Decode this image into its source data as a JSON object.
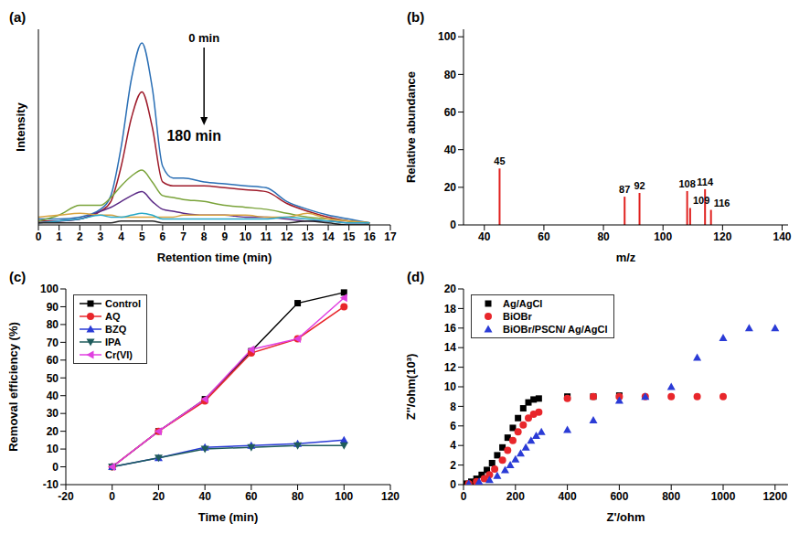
{
  "chart_data": [
    {
      "title": "(a)",
      "type": "line",
      "x_label": "Retention time (min)",
      "y_label": "Intensity",
      "tick_labels": "x",
      "annotations": [
        "0 min",
        "180 min"
      ],
      "x": [
        0,
        1,
        2,
        3,
        3.5,
        4,
        4.5,
        5,
        5.5,
        6,
        6.5,
        7,
        8,
        9,
        10,
        11,
        12,
        13,
        14,
        15,
        16
      ],
      "xlim": [
        0,
        17
      ],
      "xticks": [
        0,
        1,
        2,
        3,
        4,
        5,
        6,
        7,
        8,
        9,
        10,
        11,
        12,
        13,
        14,
        15,
        16,
        17
      ],
      "ylim": [
        0,
        100
      ],
      "series": [
        {
          "color": "#2a6fb5",
          "values": [
            3,
            3,
            4,
            8,
            15,
            40,
            75,
            93,
            70,
            30,
            24,
            24,
            22,
            21,
            20,
            19,
            12,
            8,
            5,
            3,
            1
          ]
        },
        {
          "color": "#9e1b2a",
          "values": [
            2,
            2,
            3,
            7,
            12,
            30,
            55,
            68,
            50,
            22,
            20,
            20,
            20,
            19,
            18,
            17,
            11,
            7,
            4,
            2,
            1
          ]
        },
        {
          "color": "#7aa33a",
          "values": [
            2,
            5,
            10,
            10,
            14,
            20,
            25,
            28,
            22,
            15,
            14,
            13,
            12,
            10,
            9,
            8,
            6,
            4,
            3,
            2,
            1
          ]
        },
        {
          "color": "#5b2a86",
          "values": [
            1,
            2,
            3,
            7,
            9,
            12,
            15,
            17,
            12,
            8,
            7,
            6,
            5,
            5,
            4,
            4,
            3,
            2,
            2,
            1,
            1
          ]
        },
        {
          "color": "#d9a441",
          "values": [
            4,
            5,
            6,
            5,
            5,
            4,
            4,
            4,
            4,
            4,
            4,
            5,
            5,
            5,
            5,
            4,
            4,
            6,
            3,
            2,
            1
          ]
        },
        {
          "color": "#29a9c9",
          "values": [
            1,
            2,
            3,
            5,
            4,
            4,
            5,
            6,
            5,
            3,
            3,
            3,
            3,
            3,
            3,
            3,
            4,
            3,
            2,
            1,
            1
          ]
        },
        {
          "color": "#222222",
          "values": [
            1,
            1,
            1,
            1,
            1,
            2,
            2,
            2,
            2,
            1,
            1,
            1,
            1,
            1,
            1,
            1,
            1,
            2,
            1,
            0,
            0
          ]
        }
      ]
    },
    {
      "title": "(b)",
      "type": "bar",
      "x_label": "m/z",
      "y_label": "Relative abundance",
      "x": [
        45,
        87,
        92,
        108,
        109,
        114,
        116
      ],
      "values": [
        30,
        15,
        17,
        18,
        9,
        19,
        8
      ],
      "color": "#e0211f",
      "data_labels": true,
      "xlim": [
        33,
        142
      ],
      "xticks": [
        40,
        60,
        80,
        100,
        120,
        140
      ],
      "ylim": [
        0,
        104
      ],
      "yticks": [
        0,
        20,
        40,
        60,
        80,
        100
      ]
    },
    {
      "title": "(c)",
      "type": "line",
      "x_label": "Time (min)",
      "y_label": "Removal efficiency (%)",
      "legend": "top-left",
      "x": [
        0,
        20,
        40,
        60,
        80,
        100
      ],
      "xlim": [
        -20,
        120
      ],
      "xticks": [
        -20,
        0,
        20,
        40,
        60,
        80,
        100,
        120
      ],
      "ylim": [
        -10,
        100
      ],
      "yticks": [
        -10,
        0,
        10,
        20,
        30,
        40,
        50,
        60,
        70,
        80,
        90,
        100
      ],
      "series": [
        {
          "name": "Control",
          "color": "#000000",
          "marker": "square",
          "values": [
            0,
            20,
            38,
            65,
            92,
            98
          ]
        },
        {
          "name": "AQ",
          "color": "#e8262b",
          "marker": "circle",
          "values": [
            0,
            20,
            37,
            64,
            72,
            90
          ]
        },
        {
          "name": "BZQ",
          "color": "#2a3bd6",
          "marker": "triangle",
          "values": [
            0,
            5,
            11,
            12,
            13,
            15
          ]
        },
        {
          "name": "IPA",
          "color": "#1f5c5c",
          "marker": "triangle-down",
          "values": [
            0,
            5,
            10,
            11,
            12,
            12
          ]
        },
        {
          "name": "Cr(VI)",
          "color": "#e040e0",
          "marker": "triangle-left",
          "values": [
            0,
            20,
            38,
            66,
            72,
            95
          ]
        }
      ]
    },
    {
      "title": "(d)",
      "type": "scatter",
      "x_label": "Z'/ohm",
      "y_label": "Z''/ohm(10³)",
      "legend": "top-left",
      "xlim": [
        0,
        1250
      ],
      "xticks": [
        0,
        200,
        400,
        600,
        800,
        1000,
        1200
      ],
      "ylim": [
        0,
        20
      ],
      "yticks": [
        0,
        2,
        4,
        6,
        8,
        10,
        12,
        14,
        16,
        18,
        20
      ],
      "series": [
        {
          "name": "Ag/AgCl",
          "color": "#000000",
          "marker": "square",
          "x": [
            10,
            30,
            50,
            70,
            90,
            110,
            130,
            150,
            170,
            190,
            210,
            230,
            250,
            270,
            290,
            400,
            500,
            600
          ],
          "values": [
            0.1,
            0.3,
            0.6,
            1,
            1.5,
            2.2,
            3,
            3.8,
            4.8,
            5.8,
            6.8,
            7.8,
            8.4,
            8.7,
            8.8,
            9,
            9,
            9.1
          ]
        },
        {
          "name": "BiOBr",
          "color": "#e8262b",
          "marker": "circle",
          "x": [
            20,
            50,
            80,
            100,
            120,
            150,
            170,
            190,
            210,
            230,
            250,
            270,
            290,
            400,
            500,
            600,
            700,
            800,
            900,
            1000
          ],
          "values": [
            0.1,
            0.3,
            0.6,
            1,
            1.6,
            2.5,
            3.5,
            4.5,
            5.4,
            6.1,
            6.8,
            7.2,
            7.4,
            8.8,
            9,
            9,
            9,
            9,
            9,
            9
          ]
        },
        {
          "name": "BiOBr/PSCN/ Ag/AgCl",
          "color": "#2a3bd6",
          "marker": "triangle",
          "x": [
            20,
            60,
            100,
            130,
            160,
            180,
            200,
            220,
            240,
            260,
            280,
            300,
            400,
            500,
            600,
            700,
            800,
            900,
            1000,
            1100,
            1200
          ],
          "values": [
            0.1,
            0.3,
            0.5,
            0.9,
            1.5,
            2,
            2.6,
            3.2,
            3.8,
            4.5,
            5,
            5.4,
            5.6,
            6.6,
            8.6,
            9,
            10,
            13,
            15,
            16,
            16
          ]
        }
      ]
    }
  ]
}
